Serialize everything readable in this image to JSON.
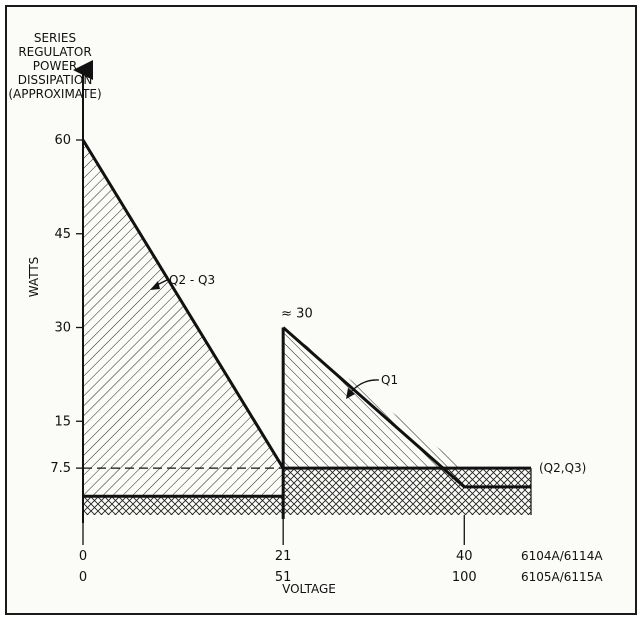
{
  "chart_data": {
    "type": "area",
    "title_lines": [
      "SERIES",
      "REGULATOR",
      "POWER",
      "DISSIPATION",
      "(APPROXIMATE)"
    ],
    "ylabel": "WATTS",
    "xlabel": "VOLTAGE",
    "ylim": [
      0,
      60
    ],
    "yticks": [
      {
        "value": 60,
        "label": "60"
      },
      {
        "value": 45,
        "label": "45"
      },
      {
        "value": 30,
        "label": "30"
      },
      {
        "value": 15,
        "label": "15"
      },
      {
        "value": 7.5,
        "label": "7.5"
      }
    ],
    "x_axis_rows": [
      {
        "model": "6104A/6114A",
        "ticks": [
          {
            "value": 0,
            "label": "0"
          },
          {
            "value": 21,
            "label": "21"
          },
          {
            "value": 40,
            "label": "40"
          }
        ]
      },
      {
        "model": "6105A/6115A",
        "ticks": [
          {
            "value": 0,
            "label": "0"
          },
          {
            "value": 51,
            "label": "51"
          },
          {
            "value": 100,
            "label": "100"
          }
        ]
      }
    ],
    "xlim": [
      0,
      47
    ],
    "series": [
      {
        "name": "Q2-Q3",
        "points": [
          [
            0,
            60
          ],
          [
            21,
            7.5
          ],
          [
            21,
            3
          ],
          [
            0,
            3
          ]
        ]
      },
      {
        "name": "Q1",
        "points": [
          [
            21,
            30
          ],
          [
            40,
            4.5
          ],
          [
            47,
            4.5
          ]
        ]
      },
      {
        "name": "(Q2,Q3)",
        "points": [
          [
            21,
            7.5
          ],
          [
            47,
            7.5
          ]
        ]
      }
    ],
    "reference_lines": [
      {
        "axis": "y",
        "value": 7.5,
        "style": "dashed"
      }
    ],
    "annotations": [
      {
        "text": "≈ 30",
        "x": 21,
        "y": 30
      },
      {
        "text": "Q2 - Q3",
        "x": 11,
        "y": 43
      },
      {
        "text": "Q1",
        "x": 34,
        "y": 35
      },
      {
        "text": "(Q2,Q3)",
        "x": 47,
        "y": 7.5
      }
    ]
  }
}
